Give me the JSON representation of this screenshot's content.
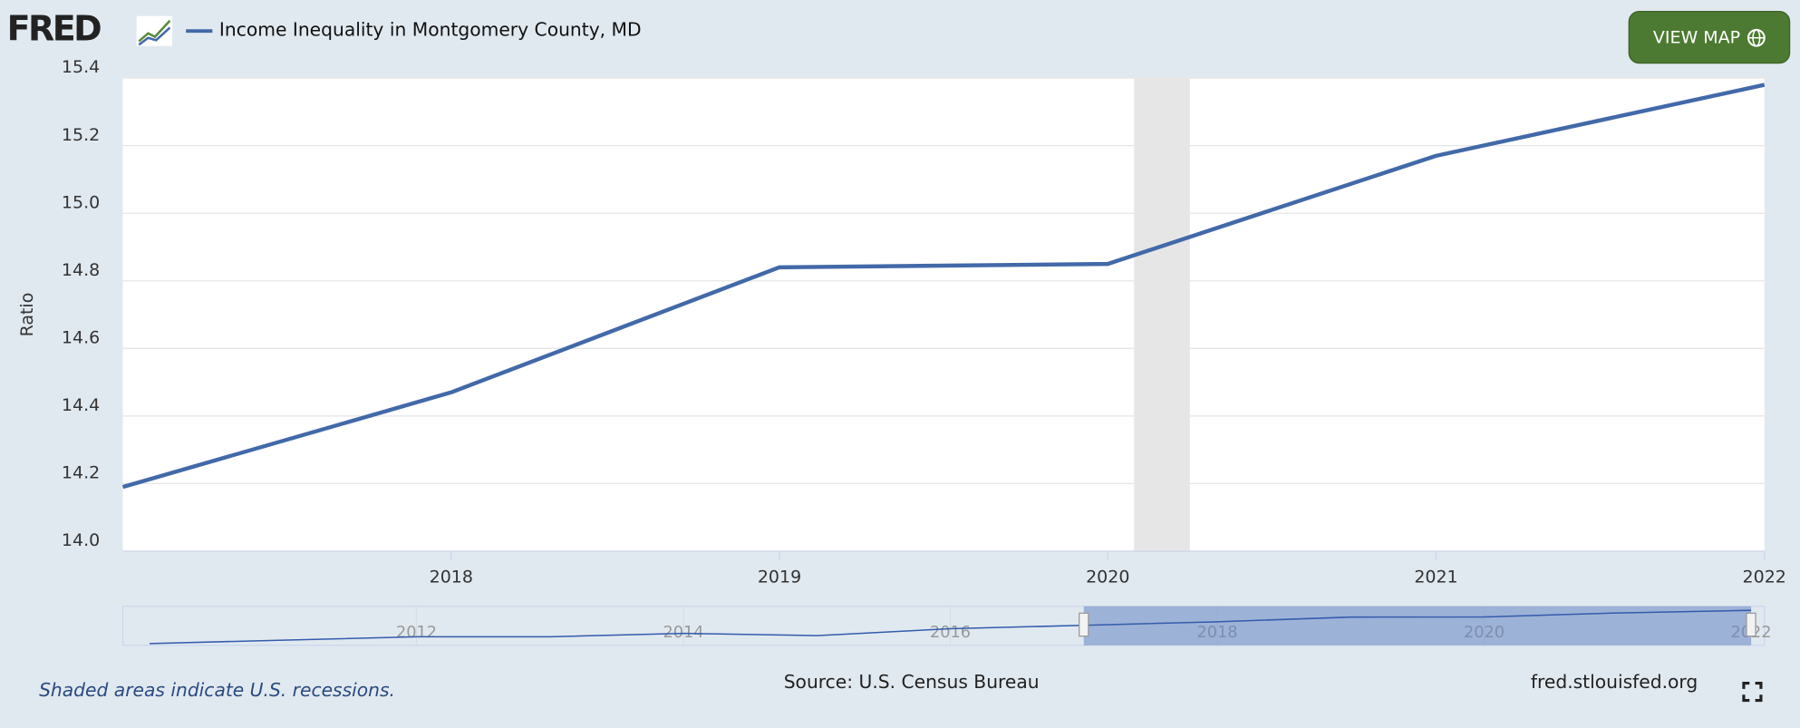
{
  "chart_data": {
    "type": "line",
    "logo": "FRED",
    "button": "VIEW MAP",
    "y_label": "Ratio",
    "source": "Source: U.S. Census Bureau",
    "site": "fred.stlouisfed.org",
    "note": "Shaded areas indicate U.S. recessions.",
    "x": [
      2017,
      2018,
      2019,
      2020,
      2021,
      2022
    ],
    "series": [
      {
        "name": "Income Inequality in Montgomery County, MD",
        "color": "#4269a8",
        "values": [
          14.19,
          14.47,
          14.84,
          14.85,
          15.17,
          15.38
        ]
      }
    ],
    "xlim": [
      2017,
      2022
    ],
    "xticks": [
      2018,
      2019,
      2020,
      2021,
      2022
    ],
    "ylim": [
      14.0,
      15.4
    ],
    "yticks": [
      {
        "value": 14.0,
        "label": "14.0"
      },
      14.2,
      14.4,
      14.6,
      14.8,
      {
        "value": 15.0,
        "label": "15.0"
      },
      15.2,
      15.4
    ],
    "grid": true,
    "recessions": [
      {
        "start": 2020.08,
        "end": 2020.25
      }
    ],
    "navigator": {
      "x": [
        2010,
        2011,
        2012,
        2013,
        2014,
        2015,
        2016,
        2017,
        2018,
        2019,
        2020,
        2021,
        2022
      ],
      "values": [
        12.74,
        13.01,
        13.28,
        13.28,
        13.55,
        13.37,
        13.92,
        14.19,
        14.47,
        14.84,
        14.85,
        15.17,
        15.38
      ],
      "xlim": [
        2009.8,
        2022.1
      ],
      "ylim": [
        12.6,
        15.7
      ],
      "xticks": [
        2012,
        2014,
        2016,
        2018,
        2020,
        2022
      ],
      "selected": [
        2017,
        2022
      ]
    }
  }
}
